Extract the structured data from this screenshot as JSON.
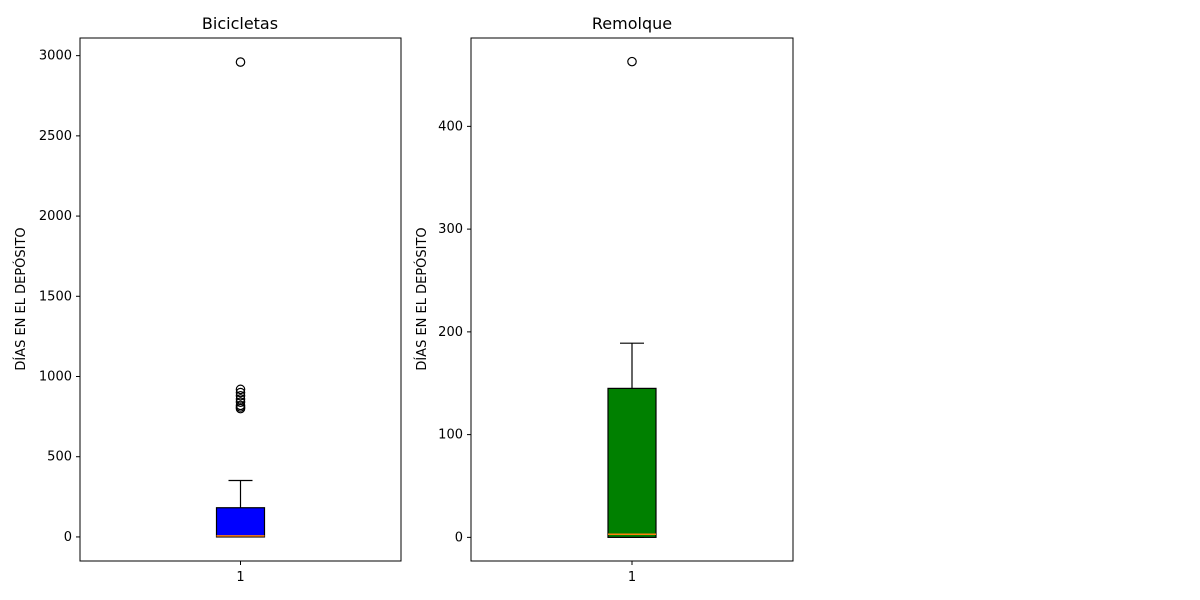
{
  "chart_data": [
    {
      "type": "box",
      "title": "Bicicletas",
      "ylabel": "DÍAS EN EL DEPÓSITO",
      "xlabel": "",
      "categories": [
        "1"
      ],
      "ylim": [
        -150,
        3110
      ],
      "yticks": [
        0,
        500,
        1000,
        1500,
        2000,
        2500,
        3000
      ],
      "box": {
        "whisker_low": 0,
        "q1": 0,
        "median": 7,
        "q3": 182,
        "whisker_high": 352
      },
      "outliers": [
        2960,
        920,
        900,
        880,
        860,
        840,
        820,
        810,
        800
      ],
      "box_color": "#0000ff",
      "median_color": "#ff7f0e"
    },
    {
      "type": "box",
      "title": "Remolque",
      "ylabel": "DÍAS EN EL DEPÓSITO",
      "xlabel": "",
      "categories": [
        "1"
      ],
      "ylim": [
        -23,
        486
      ],
      "yticks": [
        0,
        100,
        200,
        300,
        400
      ],
      "box": {
        "whisker_low": 0,
        "q1": 0,
        "median": 3,
        "q3": 145,
        "whisker_high": 189
      },
      "outliers": [
        463
      ],
      "box_color": "#008000",
      "median_color": "#ff7f0e"
    }
  ]
}
